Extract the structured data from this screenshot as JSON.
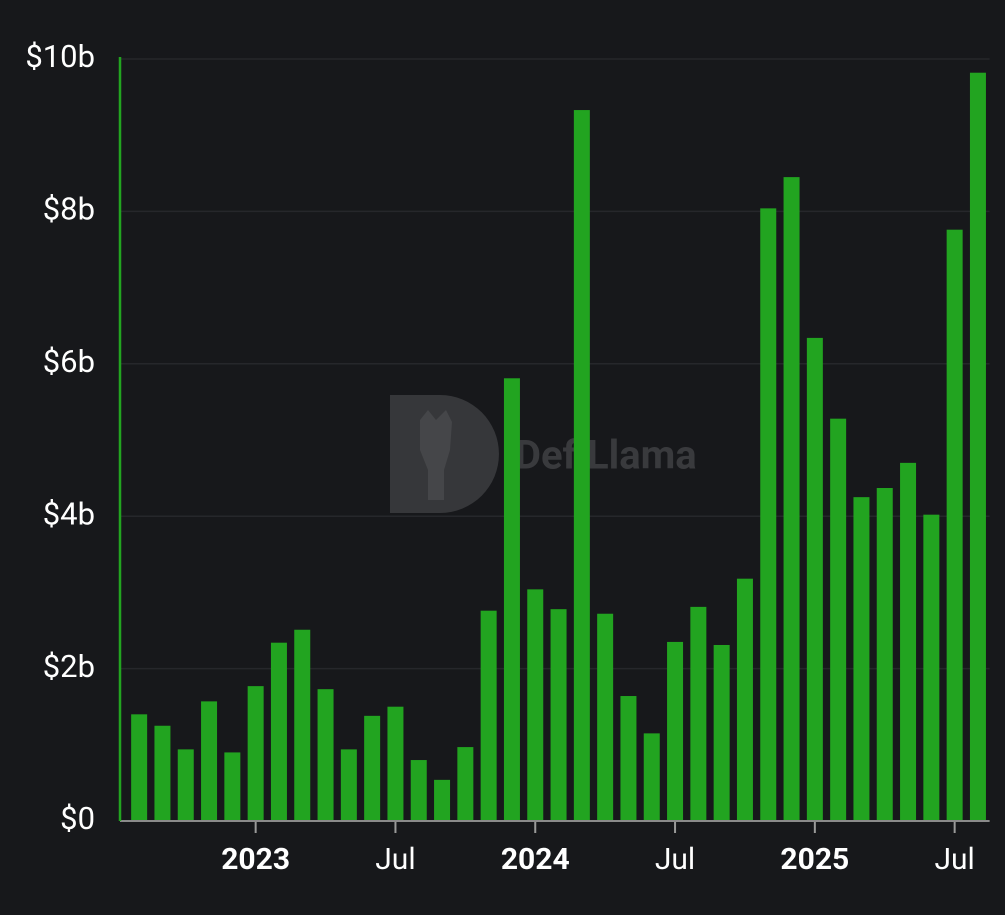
{
  "chart_data": {
    "type": "bar",
    "watermark": "DefiLlama",
    "categories": [
      null,
      null,
      null,
      null,
      null,
      "2023",
      null,
      null,
      null,
      null,
      null,
      "Jul",
      null,
      null,
      null,
      null,
      null,
      "2024",
      null,
      null,
      null,
      null,
      null,
      "Jul",
      null,
      null,
      null,
      null,
      null,
      "2025",
      null,
      null,
      null,
      null,
      null,
      "Jul",
      null
    ],
    "values": [
      1.4,
      1.25,
      0.94,
      1.57,
      0.9,
      1.77,
      2.34,
      2.51,
      1.73,
      0.94,
      1.38,
      1.5,
      0.8,
      0.54,
      0.97,
      2.76,
      5.81,
      3.04,
      2.78,
      9.33,
      2.72,
      1.64,
      1.15,
      2.35,
      2.81,
      2.31,
      3.18,
      8.04,
      8.45,
      6.34,
      5.28,
      4.25,
      4.37,
      4.7,
      4.02,
      7.76,
      9.82
    ],
    "color": "#22a420",
    "ylim": [
      0,
      10
    ],
    "yticks": [
      {
        "value": 0,
        "label": "$0"
      },
      {
        "value": 2,
        "label": "$2b"
      },
      {
        "value": 4,
        "label": "$4b"
      },
      {
        "value": 6,
        "label": "$6b"
      },
      {
        "value": 8,
        "label": "$8b"
      },
      {
        "value": 10,
        "label": "$10b"
      }
    ],
    "grid": true
  }
}
